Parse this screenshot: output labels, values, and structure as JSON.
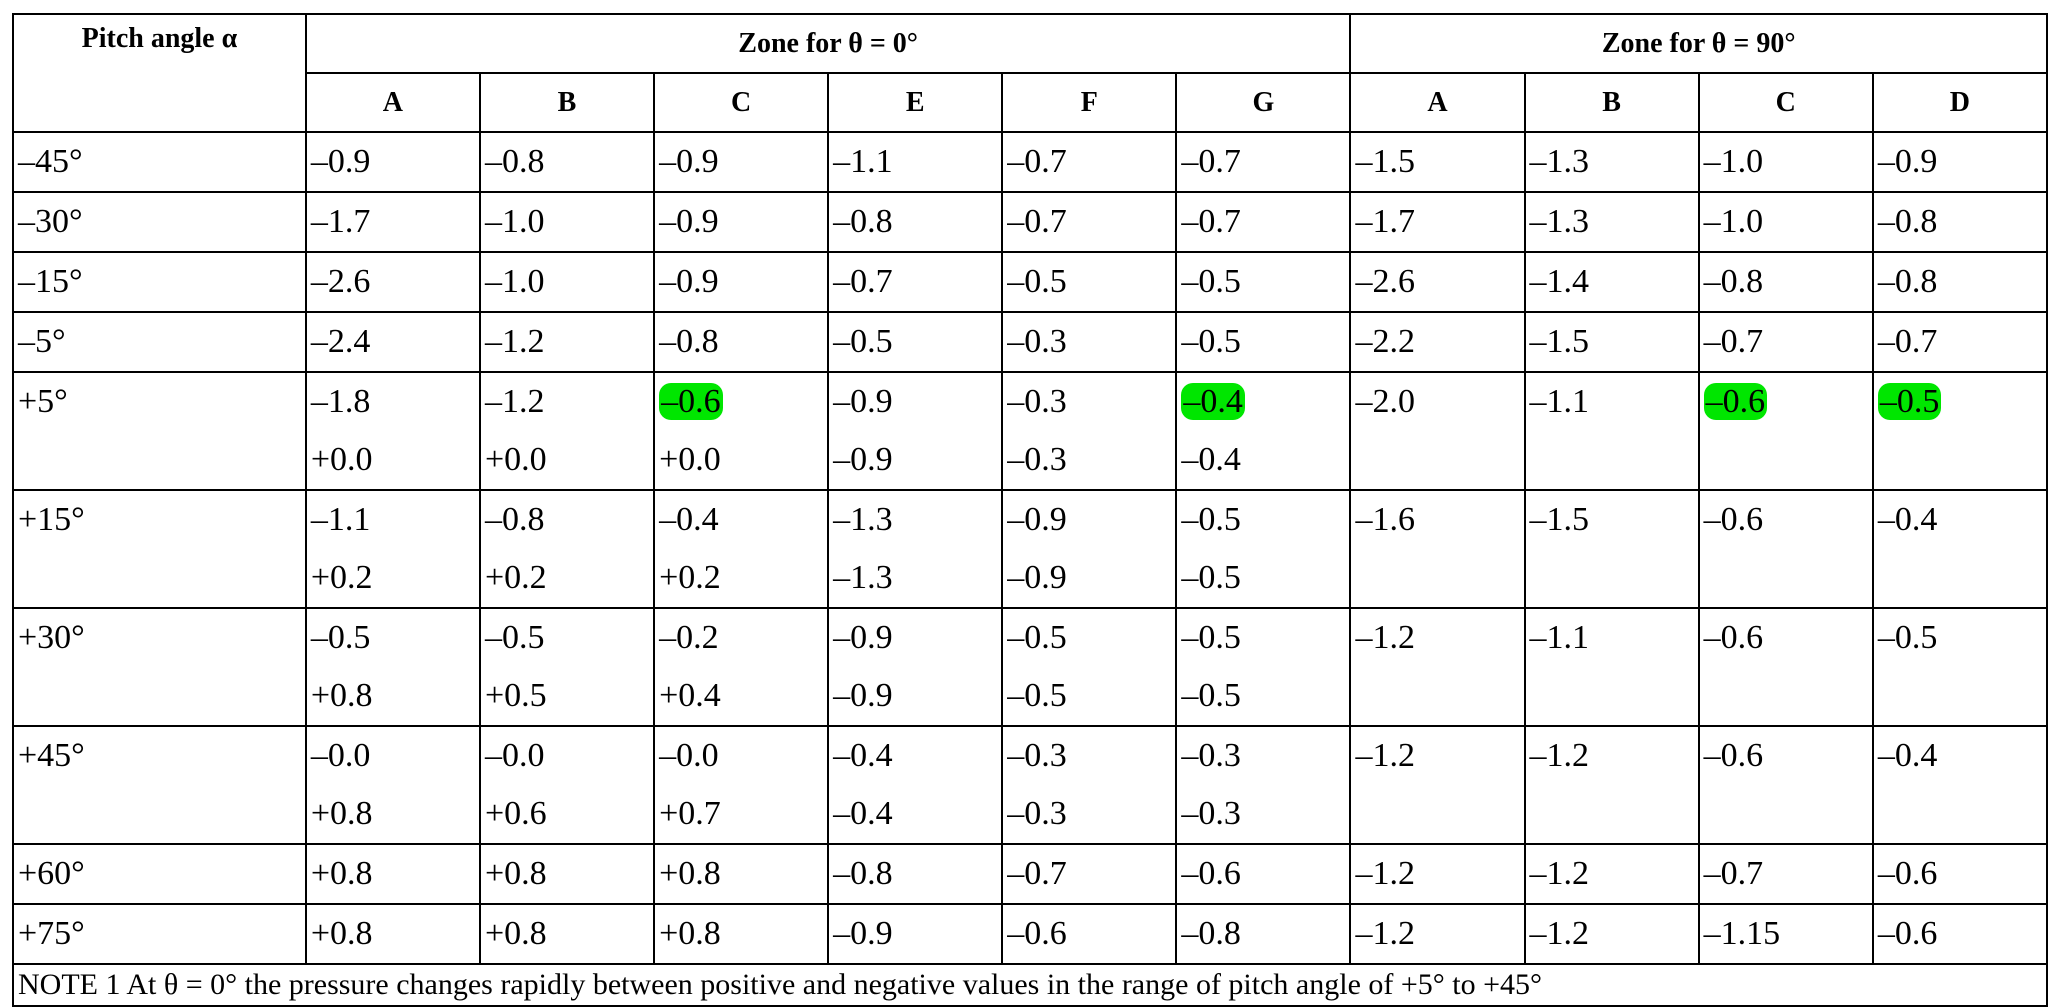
{
  "table": {
    "header": {
      "pitch": "Pitch angle α",
      "group0": "Zone for θ = 0°",
      "group90": "Zone for θ = 90°",
      "zones0": [
        "A",
        "B",
        "C",
        "E",
        "F",
        "G"
      ],
      "zones90": [
        "A",
        "B",
        "C",
        "D"
      ]
    },
    "rows": [
      {
        "pitch": "–45°",
        "theta0": [
          [
            "–0.9"
          ],
          [
            "–0.8"
          ],
          [
            "–0.9"
          ],
          [
            "–1.1"
          ],
          [
            "–0.7"
          ],
          [
            "–0.7"
          ]
        ],
        "theta90": [
          "–1.5",
          "–1.3",
          "–1.0",
          "–0.9"
        ]
      },
      {
        "pitch": "–30°",
        "theta0": [
          [
            "–1.7"
          ],
          [
            "–1.0"
          ],
          [
            "–0.9"
          ],
          [
            "–0.8"
          ],
          [
            "–0.7"
          ],
          [
            "–0.7"
          ]
        ],
        "theta90": [
          "–1.7",
          "–1.3",
          "–1.0",
          "–0.8"
        ]
      },
      {
        "pitch": "–15°",
        "theta0": [
          [
            "–2.6"
          ],
          [
            "–1.0"
          ],
          [
            "–0.9"
          ],
          [
            "–0.7"
          ],
          [
            "–0.5"
          ],
          [
            "–0.5"
          ]
        ],
        "theta90": [
          "–2.6",
          "–1.4",
          "–0.8",
          "–0.8"
        ]
      },
      {
        "pitch": "–5°",
        "theta0": [
          [
            "–2.4"
          ],
          [
            "–1.2"
          ],
          [
            "–0.8"
          ],
          [
            "–0.5"
          ],
          [
            "–0.3"
          ],
          [
            "–0.5"
          ]
        ],
        "theta90": [
          "–2.2",
          "–1.5",
          "–0.7",
          "–0.7"
        ]
      },
      {
        "pitch": "+5°",
        "theta0": [
          [
            "–1.8",
            "+0.0"
          ],
          [
            "–1.2",
            "+0.0"
          ],
          [
            "–0.6",
            "+0.0"
          ],
          [
            "–0.9",
            "–0.9"
          ],
          [
            "–0.3",
            "–0.3"
          ],
          [
            "–0.4",
            "–0.4"
          ]
        ],
        "theta90": [
          "–2.0",
          "–1.1",
          "–0.6",
          "–0.5"
        ]
      },
      {
        "pitch": "+15°",
        "theta0": [
          [
            "–1.1",
            "+0.2"
          ],
          [
            "–0.8",
            "+0.2"
          ],
          [
            "–0.4",
            "+0.2"
          ],
          [
            "–1.3",
            "–1.3"
          ],
          [
            "–0.9",
            "–0.9"
          ],
          [
            "–0.5",
            "–0.5"
          ]
        ],
        "theta90": [
          "–1.6",
          "–1.5",
          "–0.6",
          "–0.4"
        ]
      },
      {
        "pitch": "+30°",
        "theta0": [
          [
            "–0.5",
            "+0.8"
          ],
          [
            "–0.5",
            "+0.5"
          ],
          [
            "–0.2",
            "+0.4"
          ],
          [
            "–0.9",
            "–0.9"
          ],
          [
            "–0.5",
            "–0.5"
          ],
          [
            "–0.5",
            "–0.5"
          ]
        ],
        "theta90": [
          "–1.2",
          "–1.1",
          "–0.6",
          "–0.5"
        ]
      },
      {
        "pitch": "+45°",
        "theta0": [
          [
            "–0.0",
            "+0.8"
          ],
          [
            "–0.0",
            "+0.6"
          ],
          [
            "–0.0",
            "+0.7"
          ],
          [
            "–0.4",
            "–0.4"
          ],
          [
            "–0.3",
            "–0.3"
          ],
          [
            "–0.3",
            "–0.3"
          ]
        ],
        "theta90": [
          "–1.2",
          "–1.2",
          "–0.6",
          "–0.4"
        ]
      },
      {
        "pitch": "+60°",
        "theta0": [
          [
            "+0.8"
          ],
          [
            "+0.8"
          ],
          [
            "+0.8"
          ],
          [
            "–0.8"
          ],
          [
            "–0.7"
          ],
          [
            "–0.6"
          ]
        ],
        "theta90": [
          "–1.2",
          "–1.2",
          "–0.7",
          "–0.6"
        ]
      },
      {
        "pitch": "+75°",
        "theta0": [
          [
            "+0.8"
          ],
          [
            "+0.8"
          ],
          [
            "+0.8"
          ],
          [
            "–0.9"
          ],
          [
            "–0.6"
          ],
          [
            "–0.8"
          ]
        ],
        "theta90": [
          "–1.2",
          "–1.2",
          "–1.15",
          "–0.6"
        ]
      }
    ],
    "note": "NOTE 1   At θ = 0° the pressure changes rapidly between positive and negative values in the range of pitch angle of +5° to +45°"
  }
}
